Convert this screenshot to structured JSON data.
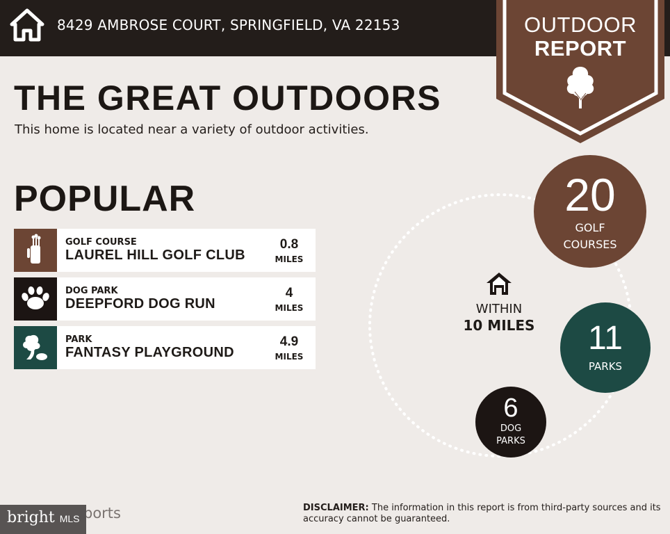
{
  "header": {
    "address": "8429 AMBROSE COURT, SPRINGFIELD, VA 22153",
    "badge_line1": "OUTDOOR",
    "badge_line2": "REPORT",
    "home_icon": "house-icon",
    "badge_icon": "tree-icon"
  },
  "main": {
    "title": "THE GREAT OUTDOORS",
    "subtitle": "This home is located near a variety of outdoor activities.",
    "popular_title": "POPULAR"
  },
  "popular_items": [
    {
      "category": "GOLF COURSE",
      "name": "LAUREL HILL GOLF CLUB",
      "distance": "0.8",
      "unit": "MILES",
      "icon": "golf-bag-icon",
      "color": "#6c4534"
    },
    {
      "category": "DOG PARK",
      "name": "DEEPFORD DOG RUN",
      "distance": "4",
      "unit": "MILES",
      "icon": "paw-icon",
      "color": "#1c1513"
    },
    {
      "category": "PARK",
      "name": "FANTASY PLAYGROUND",
      "distance": "4.9",
      "unit": "MILES",
      "icon": "park-tree-icon",
      "color": "#1d4a44"
    }
  ],
  "summary": {
    "within_line1": "WITHIN",
    "within_line2": "10 MILES",
    "golf": {
      "count": "20",
      "label1": "GOLF",
      "label2": "COURSES"
    },
    "parks": {
      "count": "11",
      "label1": "PARKS"
    },
    "dog_parks": {
      "count": "6",
      "label1": "DOG",
      "label2": "PARKS"
    }
  },
  "footer": {
    "logo_main": "bright",
    "logo_mls": "MLS",
    "reports_fragment": "ports",
    "disclaimer_label": "DISCLAIMER:",
    "disclaimer_text": " The information in this report is from third-party sources and its accuracy cannot be guaranteed."
  },
  "colors": {
    "brown": "#6c4534",
    "teal": "#1d4a44",
    "black": "#1c1513",
    "background": "#efebe8",
    "topbar": "#231d1a"
  }
}
